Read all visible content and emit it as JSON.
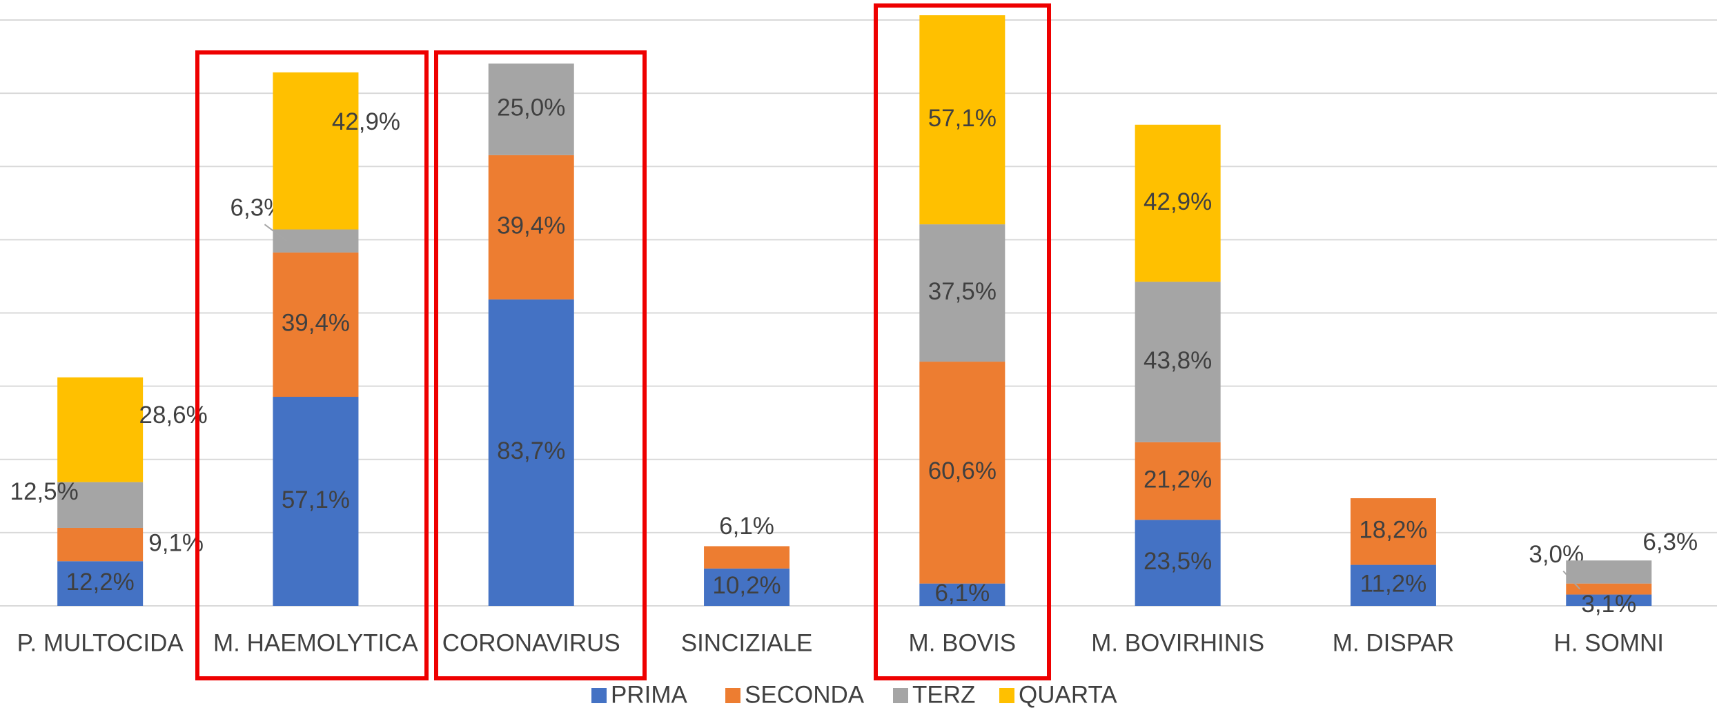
{
  "chart_data": {
    "type": "stacked_bar",
    "categories": [
      "P. MULTOCIDA",
      "M. HAEMOLYTICA",
      "CORONAVIRUS",
      "SINCIZIALE",
      "M. BOVIS",
      "M. BOVIRHINIS",
      "M. DISPAR",
      "H. SOMNI"
    ],
    "series": [
      {
        "name": "PRIMA",
        "color": "#4472c4",
        "values": [
          12.2,
          57.1,
          83.7,
          10.2,
          6.1,
          23.5,
          11.2,
          3.1
        ],
        "value_labels": [
          "12,2%",
          "57,1%",
          "83,7%",
          "10,2%",
          "6,1%",
          "23,5%",
          "11,2%",
          "3,1%"
        ]
      },
      {
        "name": "SECONDA",
        "color": "#ed7d31",
        "values": [
          9.1,
          39.4,
          39.4,
          6.1,
          60.6,
          21.2,
          18.2,
          3.0
        ],
        "value_labels": [
          "9,1%",
          "39,4%",
          "39,4%",
          "6,1%",
          "60,6%",
          "21,2%",
          "18,2%",
          "3,0%"
        ]
      },
      {
        "name": "TERZ",
        "color": "#a5a5a5",
        "values": [
          12.5,
          6.3,
          25.0,
          null,
          37.5,
          43.8,
          null,
          6.3
        ],
        "value_labels": [
          "12,5%",
          "6,3%",
          "25,0%",
          null,
          "37,5%",
          "43,8%",
          null,
          "6,3%"
        ]
      },
      {
        "name": "QUARTA",
        "color": "#ffc000",
        "values": [
          28.6,
          42.9,
          null,
          null,
          57.1,
          42.9,
          null,
          null
        ],
        "value_labels": [
          "28,6%",
          "42,9%",
          null,
          null,
          "57,1%",
          "42,9%",
          null,
          null
        ]
      }
    ],
    "ylim": [
      0,
      160
    ],
    "yticks": [
      0,
      20,
      40,
      60,
      80,
      100,
      120,
      140,
      160
    ],
    "grid": true,
    "legend": "bottom"
  }
}
